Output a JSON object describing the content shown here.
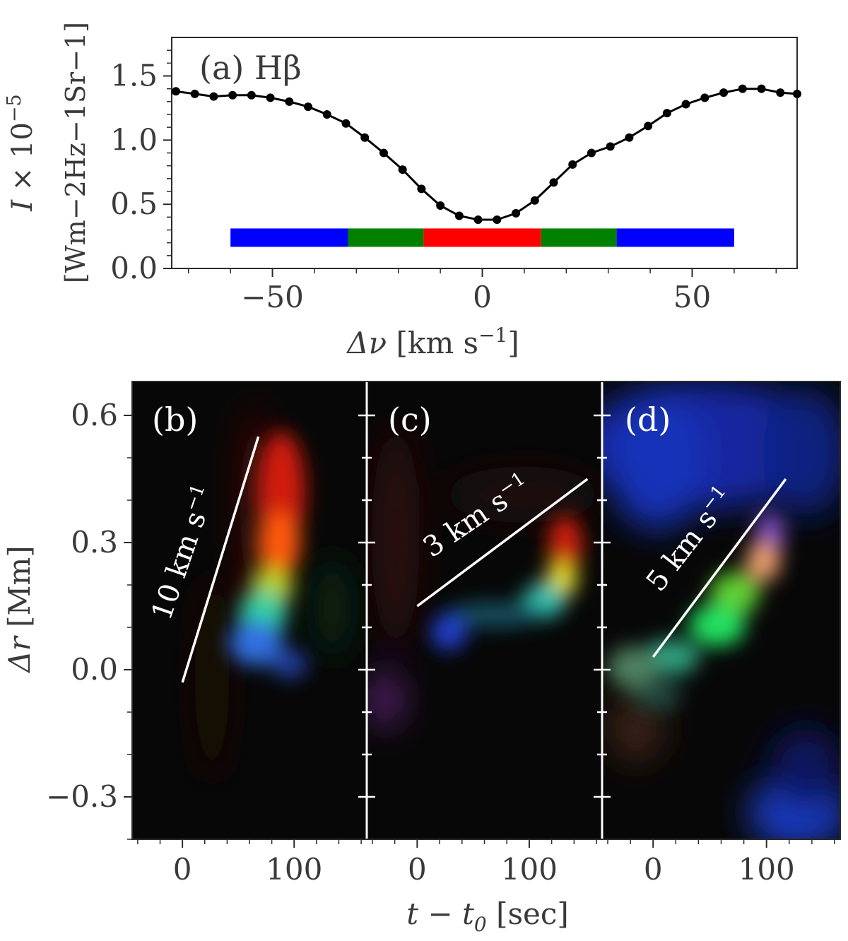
{
  "chart_data": [
    {
      "type": "line",
      "panel_label": "(a)",
      "line_label": "Hβ",
      "xlabel_symbol": "Δν",
      "xlabel_unit": "[km s",
      "xlabel_unit_exp": "−1",
      "xlabel_unit_close": "]",
      "ylabel_line1_symbol": "I",
      "ylabel_line1_rest": "× 10",
      "ylabel_line1_exp": "−5",
      "ylabel_line2": "[Wm−2Hz−1Sr−1]",
      "xlim": [
        -74,
        75
      ],
      "ylim": [
        0.0,
        1.8
      ],
      "xticks": [
        -50,
        0,
        50
      ],
      "xtick_labels": [
        "−50",
        "0",
        "50"
      ],
      "yticks": [
        0.0,
        0.5,
        1.0,
        1.5
      ],
      "ytick_labels": [
        "0.0",
        "0.5",
        "1.0",
        "1.5"
      ],
      "x": [
        -73,
        -68.5,
        -64,
        -59.5,
        -55,
        -50.5,
        -46,
        -41.5,
        -37,
        -32.5,
        -28,
        -23.5,
        -19,
        -14.5,
        -10,
        -5.5,
        -1,
        3.5,
        8,
        12.5,
        17,
        21.5,
        26,
        30.5,
        35,
        39.5,
        44,
        48.5,
        53,
        57.5,
        62,
        66.5,
        71,
        75
      ],
      "y": [
        1.38,
        1.36,
        1.34,
        1.35,
        1.35,
        1.33,
        1.3,
        1.26,
        1.2,
        1.13,
        1.02,
        0.9,
        0.77,
        0.62,
        0.49,
        0.41,
        0.38,
        0.38,
        0.43,
        0.53,
        0.67,
        0.81,
        0.9,
        0.95,
        1.02,
        1.11,
        1.21,
        1.28,
        1.33,
        1.37,
        1.4,
        1.4,
        1.37,
        1.36
      ],
      "color_bar": {
        "y": 0.24,
        "segments": [
          {
            "from": -60,
            "to": -32,
            "color": "#0000ff"
          },
          {
            "from": -32,
            "to": -14,
            "color": "#008000"
          },
          {
            "from": -14,
            "to": 14,
            "color": "#ff0000"
          },
          {
            "from": 14,
            "to": 32,
            "color": "#008000"
          },
          {
            "from": 32,
            "to": 60,
            "color": "#0000ff"
          }
        ]
      }
    },
    {
      "type": "heatmap",
      "shared_ylabel_symbol": "Δr",
      "shared_ylabel_unit": "[Mm]",
      "shared_xlabel_symbol": "t − t",
      "shared_xlabel_sub": "0",
      "shared_xlabel_unit": "[sec]",
      "ylim": [
        -0.4,
        0.68
      ],
      "yticks": [
        -0.3,
        0.0,
        0.3,
        0.6
      ],
      "ytick_labels": [
        "−0.3",
        "0.0",
        "0.3",
        "0.6"
      ],
      "xticks": [
        0,
        100
      ],
      "xtick_labels": [
        "0",
        "100"
      ],
      "panels": [
        {
          "label": "(b)",
          "xlim": [
            -45,
            165
          ],
          "line": {
            "x": [
              0,
              68
            ],
            "y": [
              -0.03,
              0.55
            ]
          },
          "speed_label": "10 km s",
          "speed_label_exp": "−1"
        },
        {
          "label": "(c)",
          "xlim": [
            -45,
            165
          ],
          "line": {
            "x": [
              0,
              152
            ],
            "y": [
              0.15,
              0.45
            ]
          },
          "speed_label": "3 km s",
          "speed_label_exp": "−1"
        },
        {
          "label": "(d)",
          "xlim": [
            -45,
            165
          ],
          "line": {
            "x": [
              0,
              117
            ],
            "y": [
              0.03,
              0.45
            ]
          },
          "speed_label": "5 km s",
          "speed_label_exp": "−1"
        }
      ]
    }
  ]
}
